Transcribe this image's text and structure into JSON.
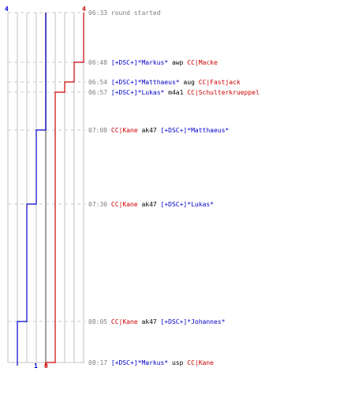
{
  "chart_data": {
    "type": "line",
    "colors": {
      "team_a": "#0000cc",
      "team_b": "#cc0000",
      "time": "#808080",
      "weapon": "#000000",
      "grid": "#c0c0c0",
      "midline": "#808080",
      "dash": "#c8c8c8"
    },
    "counts": {
      "team_a_start": "4",
      "team_b_start": "4",
      "team_a_end": "1",
      "team_b_end": "0"
    },
    "team_a_steps": [
      4,
      4,
      4,
      3,
      2,
      1,
      1
    ],
    "team_b_steps": [
      4,
      3,
      2,
      1,
      1,
      1,
      0
    ],
    "events": [
      {
        "time": "06:33",
        "text": "round started",
        "parts": []
      },
      {
        "time": "06:48",
        "parts": [
          {
            "t": "[+DSC+]*Markus*",
            "team": "a"
          },
          {
            "t": " awp ",
            "team": "w"
          },
          {
            "t": "CC|Macke",
            "team": "b"
          }
        ]
      },
      {
        "time": "06:54",
        "parts": [
          {
            "t": "[+DSC+]*Matthaeus*",
            "team": "a"
          },
          {
            "t": " aug ",
            "team": "w"
          },
          {
            "t": "CC|Fastjack",
            "team": "b"
          }
        ]
      },
      {
        "time": "06:57",
        "parts": [
          {
            "t": "[+DSC+]*Lukas*",
            "team": "a"
          },
          {
            "t": " m4a1 ",
            "team": "w"
          },
          {
            "t": "CC|Schulterkrueppel",
            "team": "b"
          }
        ]
      },
      {
        "time": "07:08",
        "parts": [
          {
            "t": "CC|Kane",
            "team": "b"
          },
          {
            "t": " ak47 ",
            "team": "w"
          },
          {
            "t": "[+DSC+]*Matthaeus*",
            "team": "a"
          }
        ]
      },
      {
        "time": "07:30",
        "parts": [
          {
            "t": "CC|Kane",
            "team": "b"
          },
          {
            "t": " ak47 ",
            "team": "w"
          },
          {
            "t": "[+DSC+]*Lukas*",
            "team": "a"
          }
        ]
      },
      {
        "time": "08:05",
        "parts": [
          {
            "t": "CC|Kane",
            "team": "b"
          },
          {
            "t": " ak47 ",
            "team": "w"
          },
          {
            "t": "[+DSC+]*Johannes*",
            "team": "a"
          }
        ]
      },
      {
        "time": "08:17",
        "parts": [
          {
            "t": "[+DSC+]*Markus*",
            "team": "a"
          },
          {
            "t": " usp ",
            "team": "w"
          },
          {
            "t": "CC|Kane",
            "team": "b"
          }
        ]
      }
    ]
  }
}
